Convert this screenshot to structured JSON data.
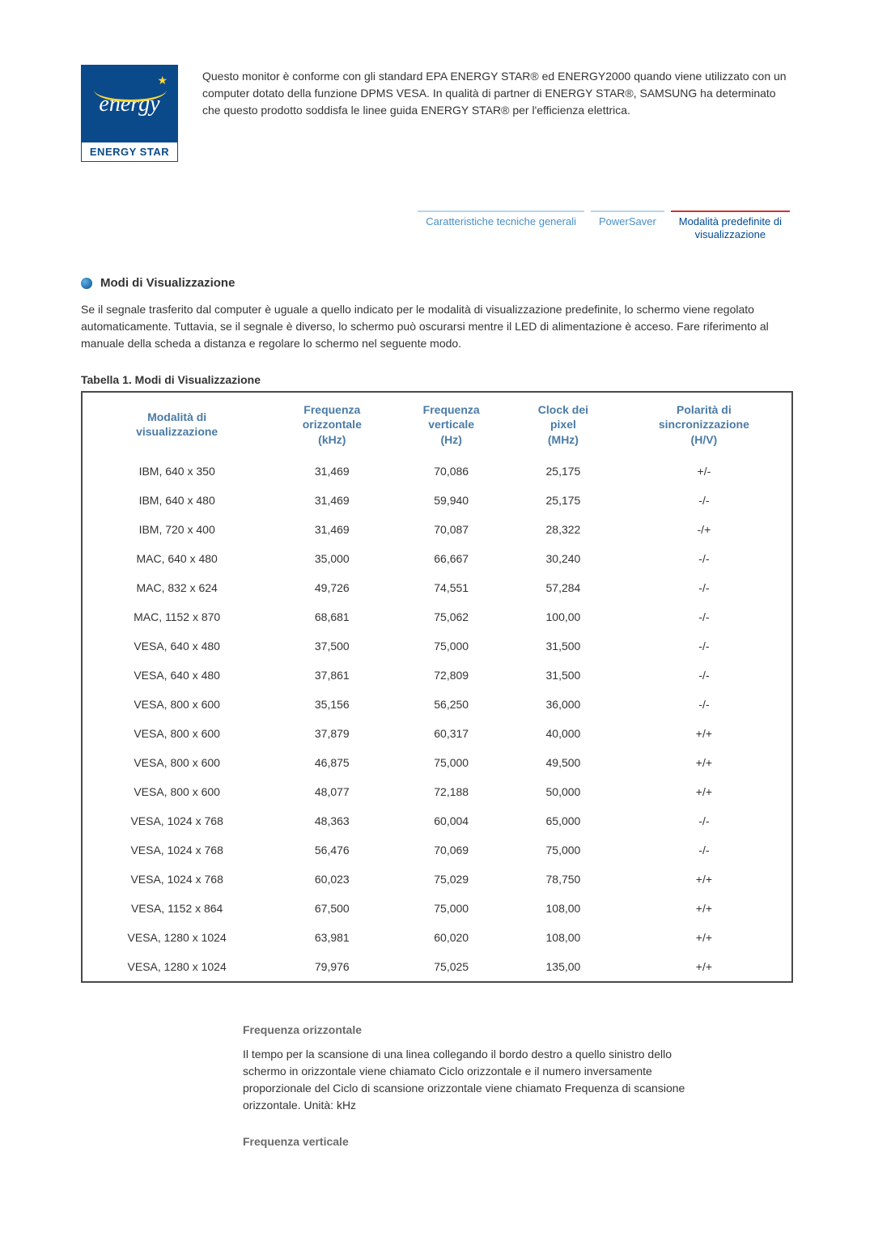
{
  "intro_text": "Questo monitor è conforme con gli standard EPA ENERGY STAR® ed ENERGY2000 quando viene utilizzato con un computer dotato della funzione DPMS VESA. In qualità di partner di ENERGY STAR®, SAMSUNG ha determinato che questo prodotto soddisfa le linee guida ENERGY STAR® per l'efficienza elettrica.",
  "logo": {
    "script": "energy",
    "label": "ENERGY STAR"
  },
  "tabs": {
    "t1": "Caratteristiche tecniche generali",
    "t2": "PowerSaver",
    "t3": "Modalità predefinite di\nvisualizzazione"
  },
  "section_title": "Modi di Visualizzazione",
  "section_body": "Se il segnale trasferito dal computer è uguale a quello indicato per le modalità di visualizzazione predefinite, lo schermo viene regolato automaticamente. Tuttavia, se il segnale è diverso, lo schermo può oscurarsi mentre il LED di alimentazione è acceso. Fare riferimento al manuale della scheda a distanza e regolare lo schermo nel seguente modo.",
  "table_title": "Tabella 1. Modi di Visualizzazione",
  "table": {
    "headers": {
      "c0": "Modalità di\nvisualizzazione",
      "c1": "Frequenza\norizzontale\n(kHz)",
      "c2": "Frequenza\nverticale\n(Hz)",
      "c3": "Clock dei\npixel\n(MHz)",
      "c4": "Polarità di\nsincronizzazione\n(H/V)"
    },
    "rows": [
      [
        "IBM, 640 x 350",
        "31,469",
        "70,086",
        "25,175",
        "+/-"
      ],
      [
        "IBM, 640 x 480",
        "31,469",
        "59,940",
        "25,175",
        "-/-"
      ],
      [
        "IBM, 720 x 400",
        "31,469",
        "70,087",
        "28,322",
        "-/+"
      ],
      [
        "MAC, 640 x 480",
        "35,000",
        "66,667",
        "30,240",
        "-/-"
      ],
      [
        "MAC, 832 x 624",
        "49,726",
        "74,551",
        "57,284",
        "-/-"
      ],
      [
        "MAC, 1152 x 870",
        "68,681",
        "75,062",
        "100,00",
        "-/-"
      ],
      [
        "VESA, 640 x 480",
        "37,500",
        "75,000",
        "31,500",
        "-/-"
      ],
      [
        "VESA, 640 x 480",
        "37,861",
        "72,809",
        "31,500",
        "-/-"
      ],
      [
        "VESA, 800 x 600",
        "35,156",
        "56,250",
        "36,000",
        "-/-"
      ],
      [
        "VESA, 800 x 600",
        "37,879",
        "60,317",
        "40,000",
        "+/+"
      ],
      [
        "VESA, 800 x 600",
        "46,875",
        "75,000",
        "49,500",
        "+/+"
      ],
      [
        "VESA, 800 x 600",
        "48,077",
        "72,188",
        "50,000",
        "+/+"
      ],
      [
        "VESA, 1024 x 768",
        "48,363",
        "60,004",
        "65,000",
        "-/-"
      ],
      [
        "VESA, 1024 x 768",
        "56,476",
        "70,069",
        "75,000",
        "-/-"
      ],
      [
        "VESA, 1024 x 768",
        "60,023",
        "75,029",
        "78,750",
        "+/+"
      ],
      [
        "VESA, 1152 x 864",
        "67,500",
        "75,000",
        "108,00",
        "+/+"
      ],
      [
        "VESA, 1280 x 1024",
        "63,981",
        "60,020",
        "108,00",
        "+/+"
      ],
      [
        "VESA, 1280 x 1024",
        "79,976",
        "75,025",
        "135,00",
        "+/+"
      ]
    ]
  },
  "defs": {
    "h_title": "Frequenza orizzontale",
    "h_text": "Il tempo per la scansione di una linea collegando il bordo destro a quello sinistro dello schermo in orizzontale viene chiamato Ciclo orizzontale e il numero inversamente proporzionale del Ciclo di scansione orizzontale viene chiamato Frequenza di scansione orizzontale. Unità: kHz",
    "v_title": "Frequenza verticale"
  },
  "colors": {
    "header_text": "#4a7ba6",
    "tab_active_bar": "#c83737",
    "tab_inactive_bar": "#b8d4ea",
    "border": "#4a4a4a"
  }
}
